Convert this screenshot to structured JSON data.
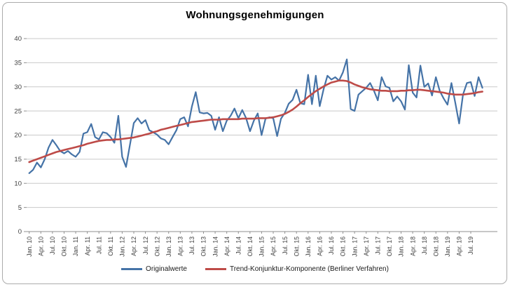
{
  "title": "Wohnungsgenehmigungen",
  "colors": {
    "original_series": "#4573A7",
    "trend_series": "#BE4B48",
    "gridline": "#c9c9c9",
    "axis_line": "#8f8f8f",
    "tick_text": "#3f3f3f",
    "title_text": "#000000"
  },
  "legend": {
    "items": [
      {
        "label": "Originalwerte",
        "color": "#4573A7"
      },
      {
        "label": "Trend-Konjunktur-Komponente (Berliner Verfahren)",
        "color": "#BE4B48"
      }
    ]
  },
  "chart_data": {
    "type": "line",
    "title": "Wohnungsgenehmigungen",
    "ylim": [
      0,
      40
    ],
    "ytick_step": 5,
    "y_tick_labels": [
      "0",
      "5",
      "10",
      "15",
      "20",
      "25",
      "30",
      "35",
      "40"
    ],
    "grid": true,
    "legend_position": "bottom",
    "x_tick_labels": [
      "Jan. 10",
      "Apr. 10",
      "Jul. 10",
      "Okt. 10",
      "Jan. 11",
      "Apr. 11",
      "Jul. 11",
      "Okt. 11",
      "Jan. 12",
      "Apr. 12",
      "Jul. 12",
      "Okt. 12",
      "Jan. 13",
      "Apr. 13",
      "Jul. 13",
      "Okt. 13",
      "Jan. 14",
      "Apr. 14",
      "Jul. 14",
      "Okt. 14",
      "Jan. 15",
      "Apr. 15",
      "Jul. 15",
      "Okt. 15",
      "Jan. 16",
      "Apr. 16",
      "Jul. 16",
      "Okt. 16",
      "Jan. 17",
      "Apr. 17",
      "Jul. 17",
      "Okt. 17",
      "Jan. 18",
      "Apr. 18",
      "Jul. 18",
      "Okt. 18",
      "Jan. 19",
      "Apr. 19",
      "Jul. 19"
    ],
    "points_per_tick": 3,
    "series": [
      {
        "name": "Originalwerte",
        "color": "#4573A7",
        "values": [
          12.1,
          12.8,
          14.3,
          13.3,
          15.0,
          17.4,
          19.0,
          17.9,
          16.7,
          16.2,
          16.7,
          16.0,
          15.5,
          16.5,
          20.3,
          20.6,
          22.3,
          19.6,
          19.1,
          20.6,
          20.4,
          19.6,
          18.4,
          24.0,
          15.5,
          13.4,
          18.0,
          22.5,
          23.5,
          22.4,
          23.1,
          21.0,
          20.6,
          20.1,
          19.3,
          19.0,
          18.1,
          19.6,
          21.0,
          23.3,
          23.7,
          21.8,
          25.9,
          28.9,
          24.7,
          24.5,
          24.6,
          24.0,
          21.1,
          23.7,
          20.8,
          23.0,
          24.0,
          25.5,
          23.5,
          25.2,
          23.5,
          20.8,
          23.0,
          24.5,
          20.0,
          23.4,
          23.7,
          23.5,
          19.8,
          23.4,
          24.6,
          26.5,
          27.3,
          29.4,
          26.6,
          26.4,
          32.5,
          26.4,
          32.3,
          26.0,
          29.5,
          32.3,
          31.5,
          32.0,
          31.3,
          33.0,
          35.7,
          25.4,
          25.0,
          28.4,
          29.1,
          29.8,
          30.8,
          29.2,
          27.2,
          32.0,
          30.1,
          29.8,
          27.0,
          28.0,
          27.0,
          25.3,
          34.5,
          28.8,
          27.8,
          34.4,
          30.0,
          30.7,
          28.2,
          32.0,
          29.1,
          27.6,
          26.3,
          30.8,
          26.7,
          22.4,
          28.4,
          30.8,
          31.0,
          28.1,
          32.0,
          29.8
        ]
      },
      {
        "name": "Trend-Konjunktur-Komponente (Berliner Verfahren)",
        "color": "#BE4B48",
        "values": [
          14.4,
          14.7,
          15.0,
          15.3,
          15.6,
          15.9,
          16.2,
          16.5,
          16.7,
          16.9,
          17.1,
          17.3,
          17.5,
          17.7,
          17.9,
          18.2,
          18.4,
          18.6,
          18.8,
          18.9,
          19.0,
          19.0,
          19.1,
          19.1,
          19.2,
          19.3,
          19.4,
          19.5,
          19.7,
          19.9,
          20.1,
          20.3,
          20.6,
          20.8,
          21.1,
          21.3,
          21.5,
          21.7,
          21.9,
          22.1,
          22.3,
          22.5,
          22.7,
          22.8,
          22.9,
          23.0,
          23.1,
          23.2,
          23.2,
          23.2,
          23.3,
          23.3,
          23.3,
          23.3,
          23.3,
          23.4,
          23.4,
          23.4,
          23.4,
          23.5,
          23.5,
          23.5,
          23.6,
          23.7,
          23.9,
          24.1,
          24.4,
          24.8,
          25.3,
          25.9,
          26.6,
          27.2,
          27.9,
          28.5,
          29.1,
          29.6,
          30.1,
          30.5,
          30.9,
          31.1,
          31.3,
          31.3,
          31.2,
          30.9,
          30.5,
          30.2,
          29.9,
          29.7,
          29.5,
          29.4,
          29.3,
          29.2,
          29.2,
          29.1,
          29.1,
          29.1,
          29.2,
          29.2,
          29.3,
          29.3,
          29.4,
          29.4,
          29.3,
          29.2,
          29.1,
          29.0,
          28.9,
          28.8,
          28.6,
          28.5,
          28.4,
          28.4,
          28.4,
          28.5,
          28.6,
          28.7,
          28.9,
          29.0
        ]
      }
    ]
  }
}
